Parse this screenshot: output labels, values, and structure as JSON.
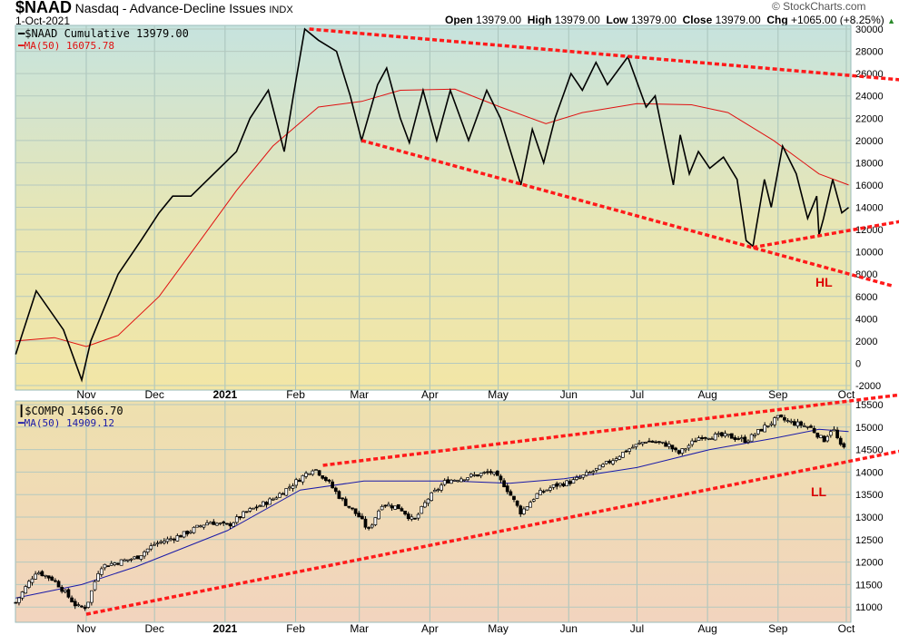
{
  "header": {
    "symbol": "$NAAD",
    "name": "Nasdaq - Advance-Decline Issues",
    "exchange": "INDX",
    "date": "1-Oct-2021",
    "watermark": "© StockCharts.com",
    "open_label": "Open",
    "open": "13979.00",
    "high_label": "High",
    "high": "13979.00",
    "low_label": "Low",
    "low": "13979.00",
    "close_label": "Close",
    "close": "13979.00",
    "chg_label": "Chg",
    "chg": "+1065.00 (+8.25%)"
  },
  "colors": {
    "price": "#000000",
    "ma_top": "#e01010",
    "ma_bottom": "#1a1aa8",
    "trend": "#ff1a1a",
    "annot": "#dd0000"
  },
  "chart_data": [
    {
      "type": "line",
      "title": "$NAAD Cumulative",
      "legend": [
        {
          "label": "$NAAD Cumulative 13979.00",
          "color": "#000000"
        },
        {
          "label": "MA(50) 16075.78",
          "color": "#e01010"
        }
      ],
      "legend_placement": "top-left",
      "x_unit": "days since 1-Oct-2020",
      "xlim": [
        0,
        366
      ],
      "ylim": [
        -2000,
        30000
      ],
      "yticks": [
        30000,
        28000,
        26000,
        24000,
        22000,
        20000,
        18000,
        16000,
        14000,
        12000,
        10000,
        8000,
        6000,
        4000,
        2000,
        0,
        -2000
      ],
      "grid": true,
      "series": [
        {
          "name": "$NAAD Cumulative",
          "points": [
            [
              0,
              800
            ],
            [
              9,
              6500
            ],
            [
              21,
              3000
            ],
            [
              29,
              -1500
            ],
            [
              33,
              2000
            ],
            [
              39,
              5000
            ],
            [
              45,
              8000
            ],
            [
              55,
              11000
            ],
            [
              63,
              13500
            ],
            [
              69,
              15000
            ],
            [
              77,
              15000
            ],
            [
              87,
              17000
            ],
            [
              97,
              19000
            ],
            [
              103,
              22000
            ],
            [
              111,
              24500
            ],
            [
              118,
              19000
            ],
            [
              122,
              24000
            ],
            [
              127,
              30000
            ],
            [
              133,
              29000
            ],
            [
              141,
              28000
            ],
            [
              147,
              24000
            ],
            [
              152,
              20000
            ],
            [
              159,
              25000
            ],
            [
              163,
              26500
            ],
            [
              169,
              22000
            ],
            [
              173,
              19800
            ],
            [
              179,
              24500
            ],
            [
              185,
              20000
            ],
            [
              191,
              24500
            ],
            [
              199,
              20000
            ],
            [
              207,
              24500
            ],
            [
              213,
              22000
            ],
            [
              222,
              16000
            ],
            [
              227,
              21000
            ],
            [
              232,
              18000
            ],
            [
              237,
              22000
            ],
            [
              244,
              26000
            ],
            [
              249,
              24500
            ],
            [
              255,
              27000
            ],
            [
              260,
              25000
            ],
            [
              269,
              27500
            ],
            [
              277,
              23000
            ],
            [
              281,
              24000
            ],
            [
              289,
              16000
            ],
            [
              292,
              20500
            ],
            [
              296,
              17000
            ],
            [
              300,
              19000
            ],
            [
              305,
              17500
            ],
            [
              311,
              18500
            ],
            [
              317,
              16500
            ],
            [
              321,
              11000
            ],
            [
              324,
              10500
            ],
            [
              329,
              16500
            ],
            [
              332,
              14000
            ],
            [
              337,
              19500
            ],
            [
              343,
              17000
            ],
            [
              348,
              13000
            ],
            [
              352,
              15000
            ],
            [
              353,
              11500
            ],
            [
              355,
              13000
            ],
            [
              359,
              16500
            ],
            [
              363,
              13500
            ],
            [
              366,
              13979
            ]
          ]
        },
        {
          "name": "MA(50)",
          "points": [
            [
              0,
              2000
            ],
            [
              17,
              2300
            ],
            [
              31,
              1500
            ],
            [
              45,
              2500
            ],
            [
              63,
              6000
            ],
            [
              81,
              11000
            ],
            [
              97,
              15500
            ],
            [
              113,
              19500
            ],
            [
              133,
              23000
            ],
            [
              152,
              23500
            ],
            [
              169,
              24500
            ],
            [
              193,
              24600
            ],
            [
              213,
              23000
            ],
            [
              233,
              21500
            ],
            [
              249,
              22500
            ],
            [
              273,
              23300
            ],
            [
              297,
              23200
            ],
            [
              313,
              22500
            ],
            [
              333,
              20000
            ],
            [
              353,
              17000
            ],
            [
              366,
              16000
            ]
          ]
        }
      ],
      "trendlines": [
        {
          "name": "upper-resistance",
          "from": [
            129,
            30000
          ],
          "to": [
            389,
            25440
          ]
        },
        {
          "name": "lower-support",
          "from": [
            152,
            20000
          ],
          "to": [
            385,
            6960
          ]
        },
        {
          "name": "higher-low",
          "from": [
            324,
            10400
          ],
          "to": [
            389,
            12740
          ]
        }
      ],
      "annotations": [
        {
          "text": "HL",
          "at": [
            353,
            6800
          ]
        }
      ]
    },
    {
      "type": "candlestick",
      "title": "$COMPQ",
      "legend": [
        {
          "label": "$COMPQ 14566.70",
          "color": "#000000"
        },
        {
          "label": "MA(50) 14909.12",
          "color": "#1a1aa8"
        }
      ],
      "legend_placement": "top-left",
      "xlim": [
        0,
        366
      ],
      "ylim": [
        10800,
        15700
      ],
      "yticks": [
        15500,
        15000,
        14500,
        14000,
        13500,
        13000,
        12500,
        12000,
        11500,
        11000
      ],
      "grid": true,
      "series": [
        {
          "name": "$COMPQ",
          "points": [
            [
              0,
              11100
            ],
            [
              9,
              11800
            ],
            [
              17,
              11600
            ],
            [
              27,
              11000
            ],
            [
              31,
              11000
            ],
            [
              37,
              11900
            ],
            [
              45,
              12000
            ],
            [
              53,
              12100
            ],
            [
              61,
              12400
            ],
            [
              73,
              12600
            ],
            [
              85,
              12900
            ],
            [
              93,
              12800
            ],
            [
              101,
              13100
            ],
            [
              113,
              13400
            ],
            [
              121,
              13700
            ],
            [
              131,
              14100
            ],
            [
              137,
              13800
            ],
            [
              143,
              13400
            ],
            [
              151,
              13000
            ],
            [
              155,
              12700
            ],
            [
              161,
              13300
            ],
            [
              169,
              13200
            ],
            [
              175,
              12900
            ],
            [
              181,
              13400
            ],
            [
              189,
              13800
            ],
            [
              199,
              13900
            ],
            [
              209,
              14000
            ],
            [
              215,
              13700
            ],
            [
              222,
              13100
            ],
            [
              229,
              13500
            ],
            [
              237,
              13700
            ],
            [
              245,
              13800
            ],
            [
              257,
              14100
            ],
            [
              269,
              14500
            ],
            [
              277,
              14700
            ],
            [
              287,
              14600
            ],
            [
              291,
              14400
            ],
            [
              301,
              14800
            ],
            [
              313,
              14800
            ],
            [
              321,
              14700
            ],
            [
              329,
              15000
            ],
            [
              335,
              15200
            ],
            [
              341,
              15100
            ],
            [
              349,
              15000
            ],
            [
              355,
              14700
            ],
            [
              359,
              15000
            ],
            [
              363,
              14500
            ],
            [
              365,
              14567
            ]
          ]
        },
        {
          "name": "MA(50)",
          "points": [
            [
              0,
              11200
            ],
            [
              29,
              11500
            ],
            [
              53,
              11900
            ],
            [
              93,
              12700
            ],
            [
              125,
              13600
            ],
            [
              153,
              13800
            ],
            [
              193,
              13800
            ],
            [
              217,
              13750
            ],
            [
              241,
              13850
            ],
            [
              273,
              14100
            ],
            [
              305,
              14500
            ],
            [
              333,
              14750
            ],
            [
              353,
              14950
            ],
            [
              366,
              14900
            ]
          ]
        }
      ],
      "trendlines": [
        {
          "name": "upper-channel",
          "from": [
            135,
            14150
          ],
          "to": [
            389,
            15720
          ]
        },
        {
          "name": "lower-channel",
          "from": [
            31,
            10840
          ],
          "to": [
            389,
            14470
          ]
        }
      ],
      "annotations": [
        {
          "text": "LL",
          "at": [
            353,
            13550
          ]
        }
      ]
    }
  ],
  "xaxis": {
    "ticks": [
      {
        "label": "Nov",
        "day": 31
      },
      {
        "label": "Dec",
        "day": 61
      },
      {
        "label": "2021",
        "day": 92,
        "bold": true
      },
      {
        "label": "Feb",
        "day": 123
      },
      {
        "label": "Mar",
        "day": 151
      },
      {
        "label": "Apr",
        "day": 182
      },
      {
        "label": "May",
        "day": 212
      },
      {
        "label": "Jun",
        "day": 243
      },
      {
        "label": "Jul",
        "day": 273
      },
      {
        "label": "Aug",
        "day": 304
      },
      {
        "label": "Sep",
        "day": 335
      },
      {
        "label": "Oct",
        "day": 365
      }
    ]
  }
}
